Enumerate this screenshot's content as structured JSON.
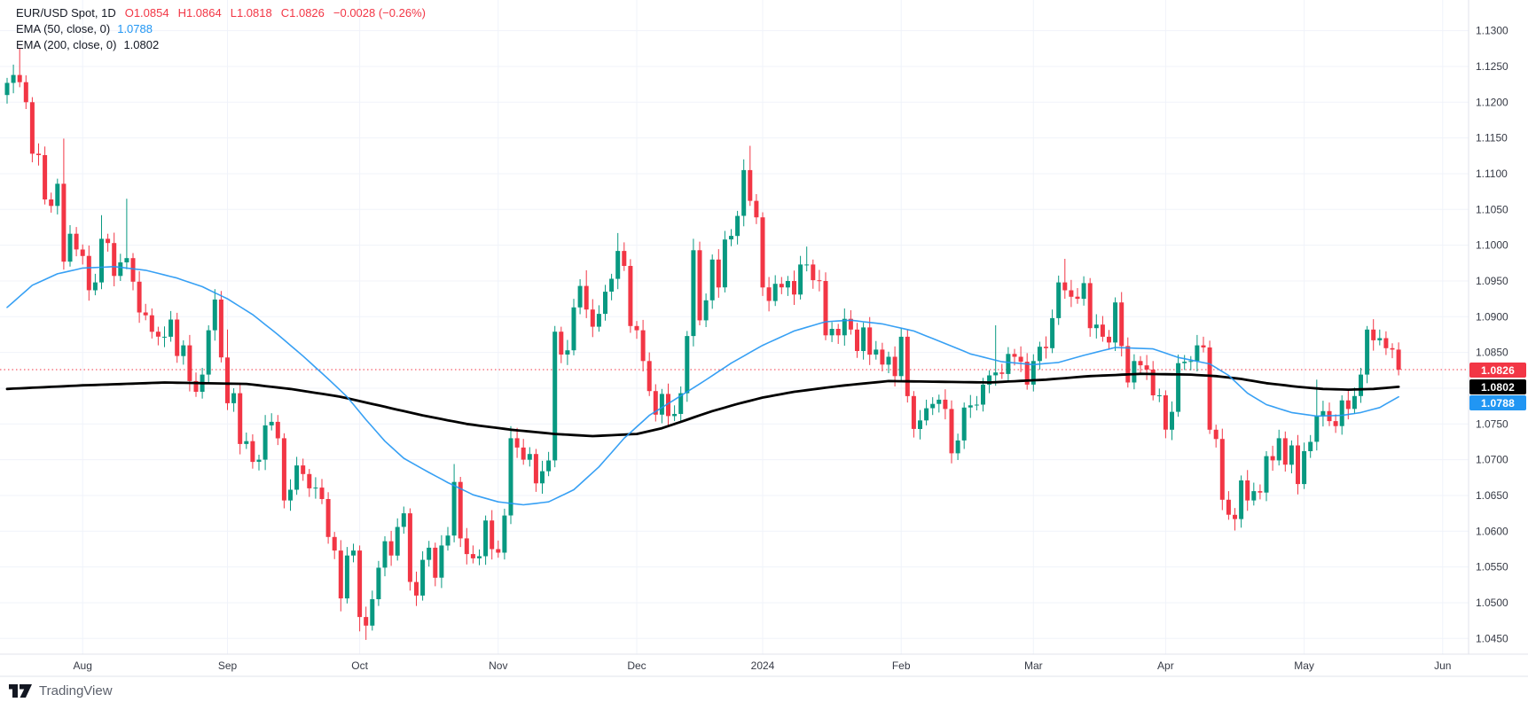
{
  "legend": {
    "symbol": "EUR/USD Spot, 1D",
    "ohlc_o": "O1.0854",
    "ohlc_h": "H1.0864",
    "ohlc_l": "L1.0818",
    "ohlc_c": "C1.0826",
    "change": "−0.0028 (−0.26%)",
    "ema50_label": "EMA (50, close, 0)",
    "ema50_value": "1.0788",
    "ema200_label": "EMA (200, close, 0)",
    "ema200_value": "1.0802"
  },
  "watermark": {
    "brand": "TradingView"
  },
  "price_labels": {
    "last": "1.0826",
    "ema200": "1.0802",
    "ema50": "1.0788"
  },
  "colors": {
    "up": "#089981",
    "down": "#F23645",
    "ema50": "#2196F3",
    "ema200": "#000000",
    "grid": "#F0F3FA",
    "border": "#E0E3EB",
    "axis_text": "#363A45",
    "dotted": "#F23645",
    "badge_last": "#F23645",
    "badge_ema200": "#000000",
    "badge_ema50": "#2196F3",
    "background": "#FFFFFF"
  },
  "chart_data": {
    "type": "candlestick",
    "title": "EUR/USD Spot",
    "timeframe": "1D",
    "last_price": 1.0826,
    "ema50_last": 1.0788,
    "ema200_last": 1.0802,
    "price_axis": {
      "min": 1.045,
      "max": 1.13,
      "step": 0.005
    },
    "months": [
      [
        "Aug",
        12
      ],
      [
        "Sep",
        35
      ],
      [
        "Oct",
        56
      ],
      [
        "Nov",
        78
      ],
      [
        "Dec",
        100
      ],
      [
        "2024",
        120
      ],
      [
        "Feb",
        142
      ],
      [
        "Mar",
        163
      ],
      [
        "Apr",
        184
      ],
      [
        "May",
        206
      ],
      [
        "Jun",
        228
      ]
    ],
    "first_open": 1.121,
    "closes": [
      1.1227,
      1.1238,
      1.1228,
      1.12,
      1.1128,
      1.1126,
      1.1064,
      1.1055,
      1.1086,
      1.0977,
      1.1016,
      1.0994,
      1.0985,
      1.0937,
      1.0948,
      1.1009,
      1.1003,
      1.0957,
      1.0976,
      1.0982,
      1.0949,
      1.0906,
      1.0902,
      1.0879,
      1.0872,
      1.0872,
      1.0896,
      1.0845,
      1.086,
      1.081,
      1.0795,
      1.0819,
      1.0881,
      1.0924,
      1.0843,
      1.0779,
      1.0793,
      1.0722,
      1.0726,
      1.0697,
      1.07,
      1.0748,
      1.0753,
      1.073,
      1.0643,
      1.0658,
      1.0692,
      1.068,
      1.066,
      1.0661,
      1.0645,
      1.0592,
      1.0573,
      1.0506,
      1.0566,
      1.0573,
      1.048,
      1.0468,
      1.0505,
      1.0549,
      1.0586,
      1.0566,
      1.0606,
      1.0625,
      1.0529,
      1.051,
      1.056,
      1.0577,
      1.0535,
      1.058,
      1.0594,
      1.0669,
      1.059,
      1.0568,
      1.0562,
      1.0565,
      1.0615,
      1.0575,
      1.057,
      1.0622,
      1.073,
      1.0717,
      1.07,
      1.0708,
      1.0667,
      1.0684,
      1.0699,
      1.0879,
      1.0847,
      1.0853,
      1.0913,
      1.0943,
      1.091,
      1.0886,
      1.0904,
      1.0935,
      1.0953,
      1.0992,
      1.0971,
      1.0887,
      1.0881,
      1.0838,
      1.0796,
      1.0763,
      1.0792,
      1.0761,
      1.0764,
      1.0793,
      1.0873,
      1.0993,
      1.0895,
      1.0923,
      1.098,
      1.0941,
      1.1008,
      1.1013,
      1.1041,
      1.1105,
      1.1062,
      1.1039,
      1.0941,
      1.0922,
      1.0946,
      1.0941,
      1.095,
      1.0931,
      1.0973,
      1.0973,
      1.0951,
      1.095,
      1.0874,
      1.0883,
      1.0874,
      1.0897,
      1.0882,
      1.0852,
      1.0885,
      1.0847,
      1.0854,
      1.0833,
      1.0844,
      1.0817,
      1.0872,
      1.0789,
      1.0743,
      1.0755,
      1.0772,
      1.0778,
      1.0784,
      1.0771,
      1.0709,
      1.0727,
      1.0773,
      1.0776,
      1.0777,
      1.0805,
      1.0818,
      1.0822,
      1.082,
      1.0848,
      1.0844,
      1.0837,
      1.0805,
      1.0838,
      1.0858,
      1.0856,
      1.0898,
      1.0948,
      1.0937,
      1.0928,
      1.0925,
      1.0947,
      1.0884,
      1.0889,
      1.0872,
      1.0864,
      1.092,
      1.0859,
      1.0808,
      1.0838,
      1.0832,
      1.0826,
      1.079,
      1.079,
      1.0742,
      1.0767,
      1.0835,
      1.0837,
      1.0838,
      1.086,
      1.0857,
      1.0742,
      1.0729,
      1.0644,
      1.0623,
      1.0617,
      1.0671,
      1.0643,
      1.0656,
      1.0654,
      1.0705,
      1.0699,
      1.073,
      1.0693,
      1.072,
      1.0666,
      1.0712,
      1.0725,
      1.0761,
      1.0768,
      1.0754,
      1.0747,
      1.0783,
      1.0771,
      1.0789,
      1.0819,
      1.0882,
      1.0867,
      1.087,
      1.0856,
      1.0854,
      1.0826
    ],
    "wick_base": 0.0007,
    "wick_quantum": 0.00025,
    "wick_overrides": {
      "2": {
        "h": 1.1276
      },
      "9": {
        "h": 1.1149,
        "l": 1.0966
      },
      "15": {
        "h": 1.1042
      },
      "19": {
        "h": 1.1065
      },
      "35": {
        "h": 1.0882
      },
      "44": {
        "l": 1.0632
      },
      "53": {
        "l": 1.0488
      },
      "56": {
        "l": 1.046
      },
      "57": {
        "l": 1.0448
      },
      "71": {
        "h": 1.0694
      },
      "80": {
        "h": 1.0747
      },
      "87": {
        "h": 1.0887
      },
      "92": {
        "h": 1.0965
      },
      "97": {
        "h": 1.1017
      },
      "109": {
        "h": 1.1009
      },
      "117": {
        "h": 1.112
      },
      "118": {
        "h": 1.1139
      },
      "127": {
        "h": 1.0998
      },
      "143": {
        "l": 1.078
      },
      "150": {
        "l": 1.0695
      },
      "157": {
        "h": 1.0888
      },
      "168": {
        "h": 1.0981
      },
      "191": {
        "l": 1.0736
      },
      "195": {
        "l": 1.0601
      },
      "208": {
        "h": 1.0812
      },
      "216": {
        "h": 1.0887
      },
      "221": {
        "h": 1.0864,
        "l": 1.0818
      }
    },
    "ema50": [
      [
        0,
        1.0913
      ],
      [
        4,
        1.0944
      ],
      [
        8,
        1.096
      ],
      [
        12,
        1.0968
      ],
      [
        17,
        1.097
      ],
      [
        22,
        1.0965
      ],
      [
        27,
        1.0954
      ],
      [
        31,
        1.0942
      ],
      [
        35,
        1.0925
      ],
      [
        39,
        1.0903
      ],
      [
        43,
        1.0875
      ],
      [
        47,
        1.0845
      ],
      [
        51,
        1.0813
      ],
      [
        54,
        1.0788
      ],
      [
        57,
        1.0756
      ],
      [
        60,
        1.0726
      ],
      [
        63,
        1.0702
      ],
      [
        66,
        1.0687
      ],
      [
        70,
        1.0668
      ],
      [
        74,
        1.0651
      ],
      [
        78,
        1.0641
      ],
      [
        82,
        1.0637
      ],
      [
        86,
        1.0641
      ],
      [
        90,
        1.0658
      ],
      [
        94,
        1.069
      ],
      [
        98,
        1.073
      ],
      [
        102,
        1.0762
      ],
      [
        106,
        1.0784
      ],
      [
        110,
        1.0806
      ],
      [
        115,
        1.0835
      ],
      [
        120,
        1.086
      ],
      [
        125,
        1.088
      ],
      [
        130,
        1.0893
      ],
      [
        134,
        1.0895
      ],
      [
        139,
        1.089
      ],
      [
        144,
        1.088
      ],
      [
        148,
        1.0866
      ],
      [
        153,
        1.0848
      ],
      [
        158,
        1.0837
      ],
      [
        163,
        1.0833
      ],
      [
        167,
        1.0836
      ],
      [
        171,
        1.0846
      ],
      [
        176,
        1.0857
      ],
      [
        182,
        1.0855
      ],
      [
        186,
        1.0843
      ],
      [
        191,
        1.0834
      ],
      [
        194,
        1.0818
      ],
      [
        197,
        1.0793
      ],
      [
        200,
        1.0777
      ],
      [
        204,
        1.0766
      ],
      [
        208,
        1.0761
      ],
      [
        212,
        1.0762
      ],
      [
        215,
        1.0766
      ],
      [
        218,
        1.0773
      ],
      [
        221,
        1.0788
      ]
    ],
    "ema200": [
      [
        0,
        1.0799
      ],
      [
        12,
        1.0804
      ],
      [
        25,
        1.0808
      ],
      [
        38,
        1.0806
      ],
      [
        45,
        1.0799
      ],
      [
        53,
        1.0788
      ],
      [
        60,
        1.0774
      ],
      [
        66,
        1.0762
      ],
      [
        73,
        1.075
      ],
      [
        80,
        1.0742
      ],
      [
        87,
        1.0736
      ],
      [
        93,
        1.0733
      ],
      [
        100,
        1.0736
      ],
      [
        104,
        1.0744
      ],
      [
        108,
        1.0756
      ],
      [
        112,
        1.0768
      ],
      [
        116,
        1.0778
      ],
      [
        120,
        1.0787
      ],
      [
        125,
        1.0795
      ],
      [
        132,
        1.0803
      ],
      [
        140,
        1.081
      ],
      [
        148,
        1.0809
      ],
      [
        156,
        1.0808
      ],
      [
        165,
        1.0812
      ],
      [
        172,
        1.0817
      ],
      [
        180,
        1.082
      ],
      [
        188,
        1.0819
      ],
      [
        192,
        1.0817
      ],
      [
        196,
        1.0813
      ],
      [
        200,
        1.0807
      ],
      [
        205,
        1.0802
      ],
      [
        209,
        1.0799
      ],
      [
        213,
        1.0798
      ],
      [
        217,
        1.0799
      ],
      [
        221,
        1.0802
      ]
    ]
  }
}
